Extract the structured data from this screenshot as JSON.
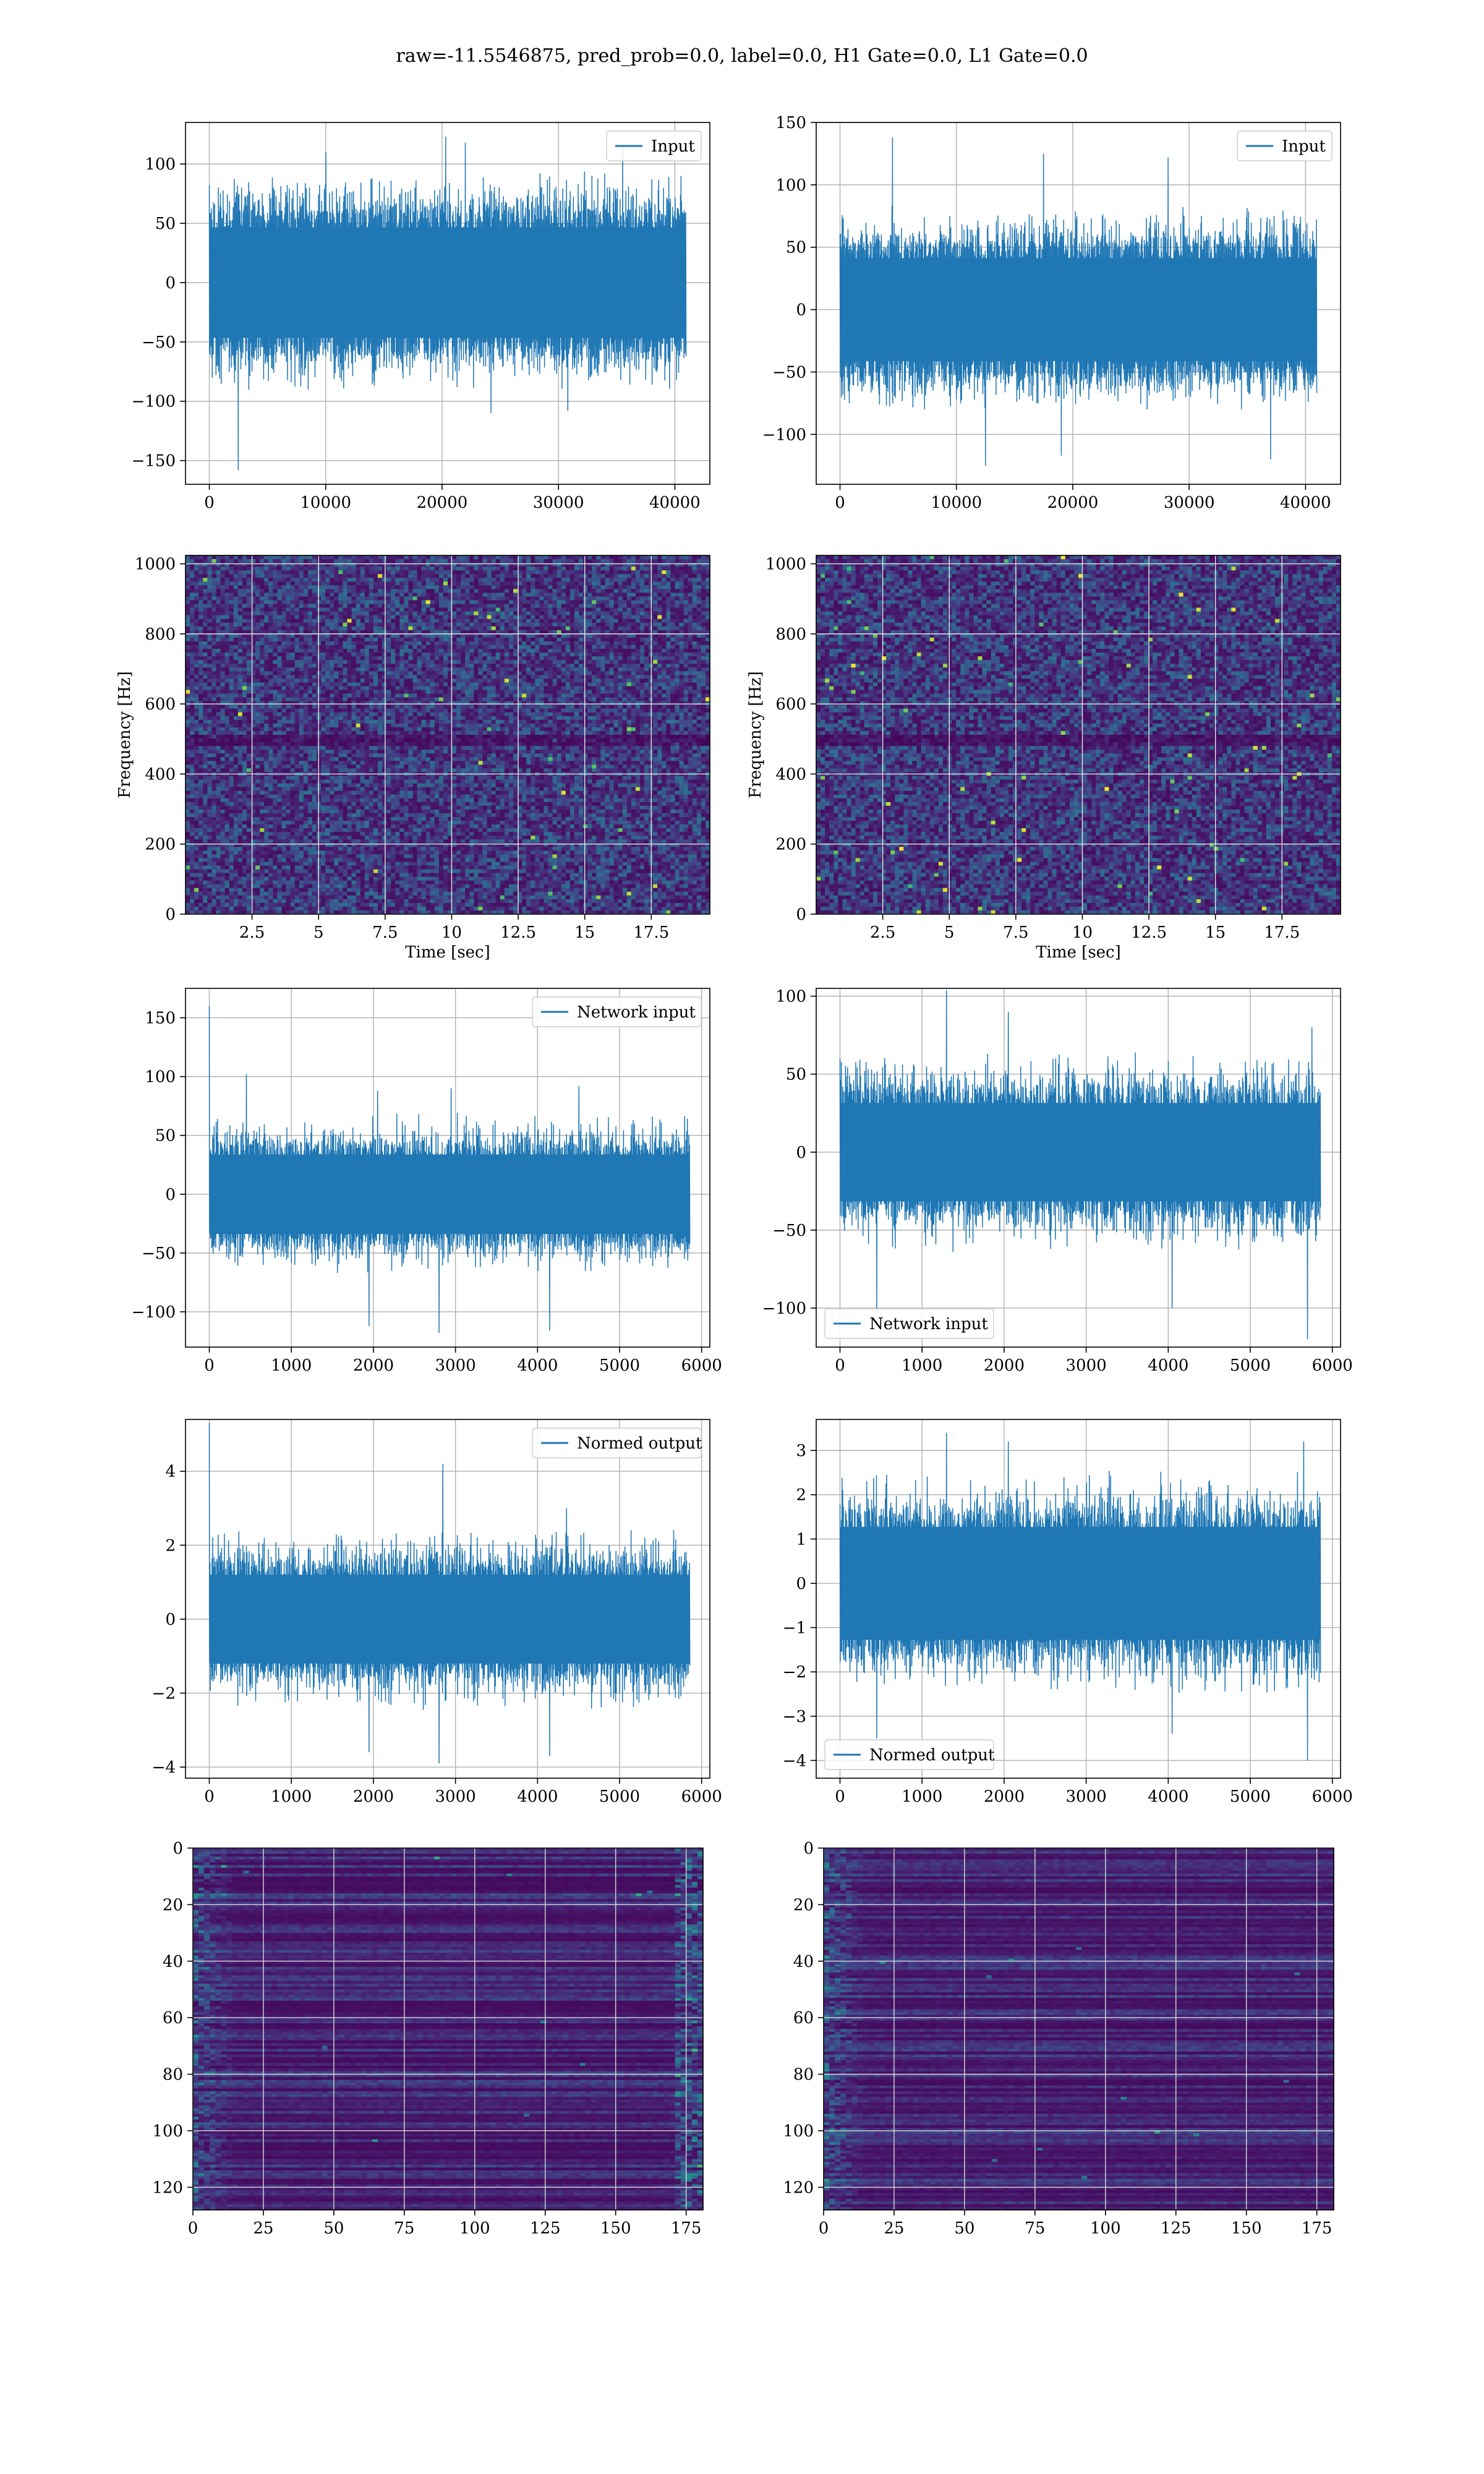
{
  "figure": {
    "suptitle": "raw=-11.5546875, pred_prob=0.0, label=0.0, H1 Gate=0.0, L1 Gate=0.0"
  },
  "colors": {
    "line": "#1f77b4",
    "grid": "#b0b0b0",
    "viridis_dark": "#440154",
    "viridis_mid": "#21918c",
    "viridis_bright": "#fde725"
  },
  "chart_data": [
    {
      "id": "input-h1",
      "type": "line",
      "legend": "Input",
      "legend_position": "upper-right",
      "xlim": [
        -2048,
        43008
      ],
      "ylim": [
        -170,
        135
      ],
      "xticks": [
        0,
        10000,
        20000,
        30000,
        40000
      ],
      "yticks": [
        -150,
        -100,
        -50,
        0,
        50,
        100
      ],
      "x_range": [
        0,
        40960
      ],
      "n_points": 1800,
      "envelope": {
        "base": 62,
        "jitter": 18
      },
      "peaks": [
        [
          2500,
          -158
        ],
        [
          10000,
          110
        ],
        [
          20300,
          123
        ],
        [
          22000,
          118
        ],
        [
          24200,
          -110
        ],
        [
          30800,
          -108
        ],
        [
          35500,
          115
        ]
      ],
      "grid": true
    },
    {
      "id": "input-l1",
      "type": "line",
      "legend": "Input",
      "legend_position": "upper-right",
      "xlim": [
        -2048,
        43008
      ],
      "ylim": [
        -140,
        150
      ],
      "xticks": [
        0,
        10000,
        20000,
        30000,
        40000
      ],
      "yticks": [
        -100,
        -50,
        0,
        50,
        100,
        150
      ],
      "x_range": [
        0,
        40960
      ],
      "n_points": 1800,
      "envelope": {
        "base": 55,
        "jitter": 16
      },
      "peaks": [
        [
          4500,
          138
        ],
        [
          12500,
          -125
        ],
        [
          17500,
          125
        ],
        [
          19000,
          -117
        ],
        [
          28200,
          122
        ],
        [
          37000,
          -120
        ]
      ],
      "grid": true
    },
    {
      "id": "spectrogram-h1",
      "type": "heatmap",
      "xlabel": "Time [sec]",
      "ylabel": "Frequency [Hz]",
      "xlim": [
        0,
        19.7
      ],
      "ylim": [
        0,
        1024
      ],
      "xticks": [
        2.5,
        5.0,
        7.5,
        10.0,
        12.5,
        15.0,
        17.5
      ],
      "yticks": [
        0,
        200,
        400,
        600,
        800,
        1000
      ],
      "colormap": "viridis",
      "grid": true,
      "seed": 11,
      "dark_band_hz": [
        490,
        510
      ]
    },
    {
      "id": "spectrogram-l1",
      "type": "heatmap",
      "xlabel": "Time [sec]",
      "ylabel": "Frequency [Hz]",
      "xlim": [
        0,
        19.7
      ],
      "ylim": [
        0,
        1024
      ],
      "xticks": [
        2.5,
        5.0,
        7.5,
        10.0,
        12.5,
        15.0,
        17.5
      ],
      "yticks": [
        0,
        200,
        400,
        600,
        800,
        1000
      ],
      "colormap": "viridis",
      "grid": true,
      "seed": 23,
      "dark_band_hz": [
        490,
        510
      ]
    },
    {
      "id": "network-input-h1",
      "type": "line",
      "legend": "Network input",
      "legend_position": "upper-right",
      "xlim": [
        -290,
        6100
      ],
      "ylim": [
        -130,
        175
      ],
      "xticks": [
        0,
        1000,
        2000,
        3000,
        4000,
        5000,
        6000
      ],
      "yticks": [
        -100,
        -50,
        0,
        50,
        100,
        150
      ],
      "x_range": [
        0,
        5856
      ],
      "n_points": 1400,
      "envelope": {
        "base": 45,
        "jitter": 14
      },
      "peaks": [
        [
          0,
          160
        ],
        [
          450,
          102
        ],
        [
          1950,
          -112
        ],
        [
          2050,
          88
        ],
        [
          2800,
          -118
        ],
        [
          2950,
          90
        ],
        [
          4150,
          -116
        ],
        [
          4500,
          92
        ]
      ],
      "grid": true
    },
    {
      "id": "network-input-l1",
      "type": "line",
      "legend": "Network input",
      "legend_position": "lower-left",
      "xlim": [
        -290,
        6100
      ],
      "ylim": [
        -125,
        105
      ],
      "xticks": [
        0,
        1000,
        2000,
        3000,
        4000,
        5000,
        6000
      ],
      "yticks": [
        -100,
        -50,
        0,
        50,
        100
      ],
      "x_range": [
        0,
        5856
      ],
      "n_points": 1400,
      "envelope": {
        "base": 42,
        "jitter": 13
      },
      "peaks": [
        [
          450,
          -102
        ],
        [
          1300,
          104
        ],
        [
          2050,
          90
        ],
        [
          4050,
          -100
        ],
        [
          5700,
          -120
        ],
        [
          5750,
          80
        ]
      ],
      "grid": true
    },
    {
      "id": "normed-output-h1",
      "type": "line",
      "legend": "Normed output",
      "legend_position": "upper-right",
      "xlim": [
        -290,
        6100
      ],
      "ylim": [
        -4.3,
        5.4
      ],
      "xticks": [
        0,
        1000,
        2000,
        3000,
        4000,
        5000,
        6000
      ],
      "yticks": [
        -4,
        -2,
        0,
        2,
        4
      ],
      "x_range": [
        0,
        5856
      ],
      "n_points": 1400,
      "envelope": {
        "base": 1.6,
        "jitter": 0.5
      },
      "peaks": [
        [
          0,
          5.3
        ],
        [
          1950,
          -3.6
        ],
        [
          2800,
          -3.9
        ],
        [
          2850,
          4.2
        ],
        [
          4150,
          -3.7
        ],
        [
          4350,
          3.0
        ]
      ],
      "grid": true
    },
    {
      "id": "normed-output-l1",
      "type": "line",
      "legend": "Normed output",
      "legend_position": "lower-left",
      "xlim": [
        -290,
        6100
      ],
      "ylim": [
        -4.4,
        3.7
      ],
      "xticks": [
        0,
        1000,
        2000,
        3000,
        4000,
        5000,
        6000
      ],
      "yticks": [
        -4,
        -3,
        -2,
        -1,
        0,
        1,
        2,
        3
      ],
      "x_range": [
        0,
        5856
      ],
      "n_points": 1400,
      "envelope": {
        "base": 1.7,
        "jitter": 0.5
      },
      "peaks": [
        [
          450,
          -3.5
        ],
        [
          1300,
          3.4
        ],
        [
          2050,
          3.2
        ],
        [
          4050,
          -3.4
        ],
        [
          5700,
          -4.0
        ],
        [
          5650,
          3.2
        ]
      ],
      "grid": true
    },
    {
      "id": "features-h1",
      "type": "heatmap",
      "xlim": [
        0,
        181
      ],
      "ylim": [
        128,
        0
      ],
      "xticks": [
        0,
        25,
        50,
        75,
        100,
        125,
        150,
        175
      ],
      "yticks": [
        0,
        20,
        40,
        60,
        80,
        100,
        120
      ],
      "rows": 128,
      "cols": 182,
      "colormap": "viridis",
      "grid": true,
      "seed": 7,
      "edge_activity": "both"
    },
    {
      "id": "features-l1",
      "type": "heatmap",
      "xlim": [
        0,
        181
      ],
      "ylim": [
        128,
        0
      ],
      "xticks": [
        0,
        25,
        50,
        75,
        100,
        125,
        150,
        175
      ],
      "yticks": [
        0,
        20,
        40,
        60,
        80,
        100,
        120
      ],
      "rows": 128,
      "cols": 182,
      "colormap": "viridis",
      "grid": true,
      "seed": 19,
      "edge_activity": "left"
    }
  ]
}
